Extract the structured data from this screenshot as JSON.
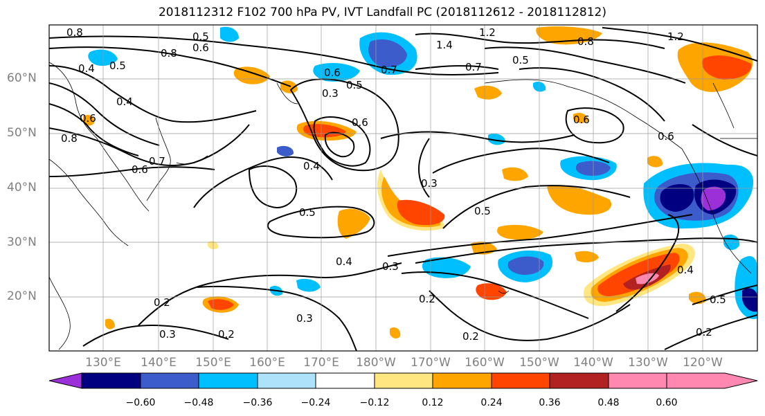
{
  "title": "2018112312 F102 700 hPa PV, IVT Landfall PC (2018112612 - 2018112812)",
  "latitude_labels": [
    "60°N",
    "50°N",
    "40°N",
    "30°N",
    "20°N"
  ],
  "longitude_labels": [
    "130°E",
    "140°E",
    "150°E",
    "160°E",
    "170°E",
    "180°W",
    "170°W",
    "160°W",
    "150°W",
    "140°W",
    "130°W",
    "120°W"
  ],
  "colorbar": {
    "colors": [
      "#9b30d9",
      "#000080",
      "#3c5ccc",
      "#00bfff",
      "#aee2fa",
      "#ffffff",
      "#ffe680",
      "#ffa500",
      "#ff4500",
      "#b22222",
      "#ff88b0"
    ],
    "tick_labels": [
      "−0.60",
      "−0.48",
      "−0.36",
      "−0.24",
      "−0.12",
      "0.12",
      "0.24",
      "0.36",
      "0.48",
      "0.60"
    ]
  },
  "contour_labels": [
    "0.8",
    "0.5",
    "0.6",
    "0.8",
    "0.4",
    "0.5",
    "0.4",
    "0.6",
    "0.8",
    "0.6",
    "0.7",
    "0.5",
    "0.3",
    "0.6",
    "0.7",
    "0.6",
    "0.4",
    "0.5",
    "0.4",
    "0.3",
    "0.3",
    "0.5",
    "0.2",
    "0.3",
    "0.2",
    "0.3",
    "0.2",
    "1.4",
    "1.2",
    "0.8",
    "1.2",
    "0.5",
    "0.7",
    "0.6",
    "0.4",
    "0.5",
    "0.2",
    "0.2",
    "0.6"
  ]
}
